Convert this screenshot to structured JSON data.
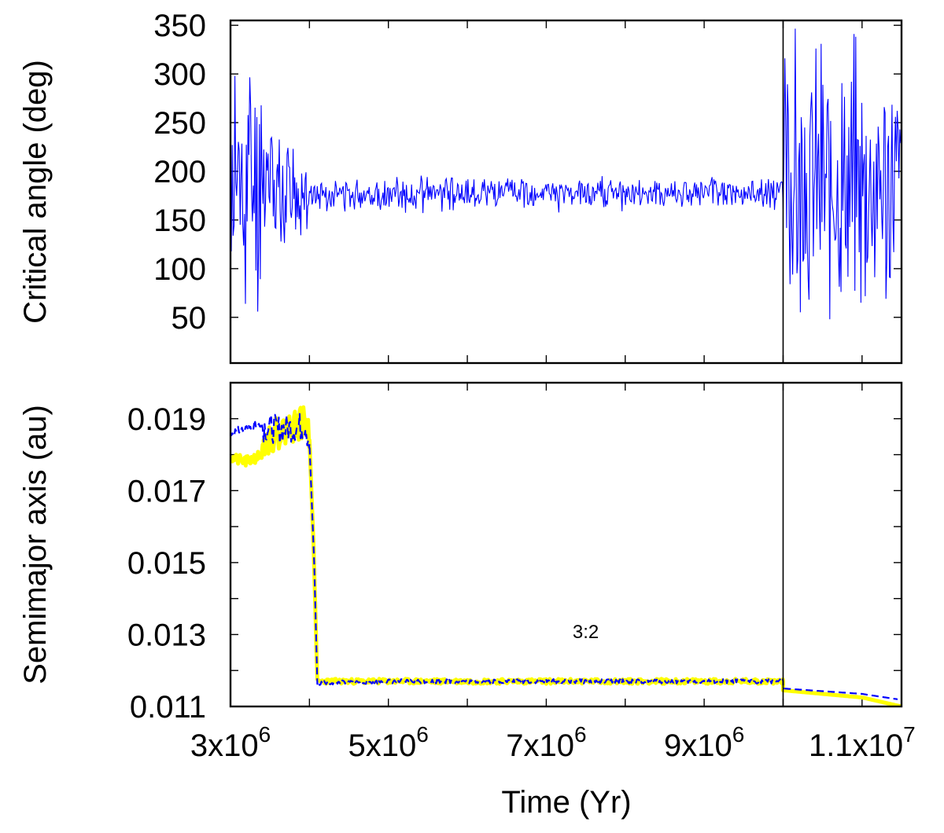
{
  "chart_data": [
    {
      "type": "line",
      "title": "",
      "xlabel": "",
      "ylabel": "Critical angle (deg)",
      "xlim": [
        3000000,
        11500000
      ],
      "ylim": [
        3,
        355
      ],
      "x_ticks": [
        4000000,
        5000000,
        6000000,
        7000000,
        8000000,
        9000000,
        10000000,
        11000000
      ],
      "y_ticks": [
        50,
        100,
        150,
        200,
        250,
        300,
        350
      ],
      "y_tick_labels": [
        "50",
        "100",
        "150",
        "200",
        "250",
        "300",
        "350"
      ],
      "vertical_marker_x": 10000000,
      "series": [
        {
          "color": "#0000ff",
          "style": "solid",
          "segments": [
            {
              "x_start": 3000000,
              "x_end": 3400000,
              "center": 185,
              "spread": 170,
              "seed": 11
            },
            {
              "x_start": 3400000,
              "x_end": 4000000,
              "center": 180,
              "spread": 80,
              "seed": 12
            },
            {
              "x_start": 4000000,
              "x_end": 10000000,
              "center": 177,
              "spread": 20,
              "seed": 13
            },
            {
              "x_start": 10000000,
              "x_end": 11500000,
              "center": 185,
              "spread": 170,
              "seed": 14
            }
          ]
        }
      ]
    },
    {
      "type": "line",
      "title": "",
      "xlabel": "Time (Yr)",
      "ylabel": "Semimajor axis (au)",
      "xlim": [
        3000000,
        11500000
      ],
      "ylim": [
        0.011,
        0.02
      ],
      "x_ticks": [
        3000000,
        4000000,
        5000000,
        6000000,
        7000000,
        8000000,
        9000000,
        10000000,
        11000000
      ],
      "x_tick_labels": [
        {
          "x": 3000000,
          "mantissa": "3x10",
          "exp": "6"
        },
        {
          "x": 5000000,
          "mantissa": "5x10",
          "exp": "6"
        },
        {
          "x": 7000000,
          "mantissa": "7x10",
          "exp": "6"
        },
        {
          "x": 9000000,
          "mantissa": "9x10",
          "exp": "6"
        },
        {
          "x": 11000000,
          "mantissa": "1.1x10",
          "exp": "7"
        }
      ],
      "y_ticks": [
        0.011,
        0.012,
        0.013,
        0.014,
        0.015,
        0.016,
        0.017,
        0.018,
        0.019
      ],
      "y_tick_labels": [
        {
          "y": 0.011,
          "label": "0.011"
        },
        {
          "y": 0.013,
          "label": "0.013"
        },
        {
          "y": 0.015,
          "label": "0.015"
        },
        {
          "y": 0.017,
          "label": "0.017"
        },
        {
          "y": 0.019,
          "label": "0.019"
        }
      ],
      "vertical_marker_x": 10000000,
      "annotations": [
        {
          "text": "3:2",
          "x": 7500000,
          "y": 0.0129
        }
      ],
      "series": [
        {
          "color": "#ffff00",
          "style": "solid-thick",
          "points": [
            [
              3000000,
              0.0179
            ],
            [
              3200000,
              0.0178
            ],
            [
              3400000,
              0.018
            ],
            [
              3420000,
              0.0184
            ],
            [
              3600000,
              0.0186
            ],
            [
              3800000,
              0.0188
            ],
            [
              3950000,
              0.0189
            ],
            [
              4000000,
              0.0184
            ],
            [
              4050000,
              0.0156
            ],
            [
              4100000,
              0.0117
            ],
            [
              5000000,
              0.0117
            ],
            [
              7000000,
              0.0117
            ],
            [
              9000000,
              0.0117
            ],
            [
              10000000,
              0.0117
            ],
            [
              10000000,
              0.01145
            ],
            [
              11000000,
              0.01125
            ],
            [
              11500000,
              0.011
            ]
          ],
          "noise": [
            {
              "x_start": 3000000,
              "x_end": 3420000,
              "amp": 0.00015,
              "seed": 21
            },
            {
              "x_start": 3420000,
              "x_end": 4000000,
              "amp": 0.00045,
              "seed": 22
            },
            {
              "x_start": 4100000,
              "x_end": 10000000,
              "amp": 7e-05,
              "seed": 23
            }
          ]
        },
        {
          "color": "#0000ff",
          "style": "dashed",
          "points": [
            [
              3000000,
              0.0186
            ],
            [
              3300000,
              0.0188
            ],
            [
              3600000,
              0.0187
            ],
            [
              3950000,
              0.0188
            ],
            [
              4000000,
              0.0183
            ],
            [
              4060000,
              0.015
            ],
            [
              4100000,
              0.01165
            ],
            [
              5000000,
              0.0117
            ],
            [
              7000000,
              0.0117
            ],
            [
              9000000,
              0.0117
            ],
            [
              10000000,
              0.0117
            ],
            [
              10000000,
              0.0115
            ],
            [
              11000000,
              0.01135
            ],
            [
              11450000,
              0.0112
            ]
          ],
          "noise": [
            {
              "x_start": 3000000,
              "x_end": 3400000,
              "amp": 0.00012,
              "seed": 31
            },
            {
              "x_start": 3400000,
              "x_end": 4000000,
              "amp": 0.0004,
              "seed": 32
            },
            {
              "x_start": 4100000,
              "x_end": 10000000,
              "amp": 6e-05,
              "seed": 33
            }
          ]
        }
      ]
    }
  ]
}
